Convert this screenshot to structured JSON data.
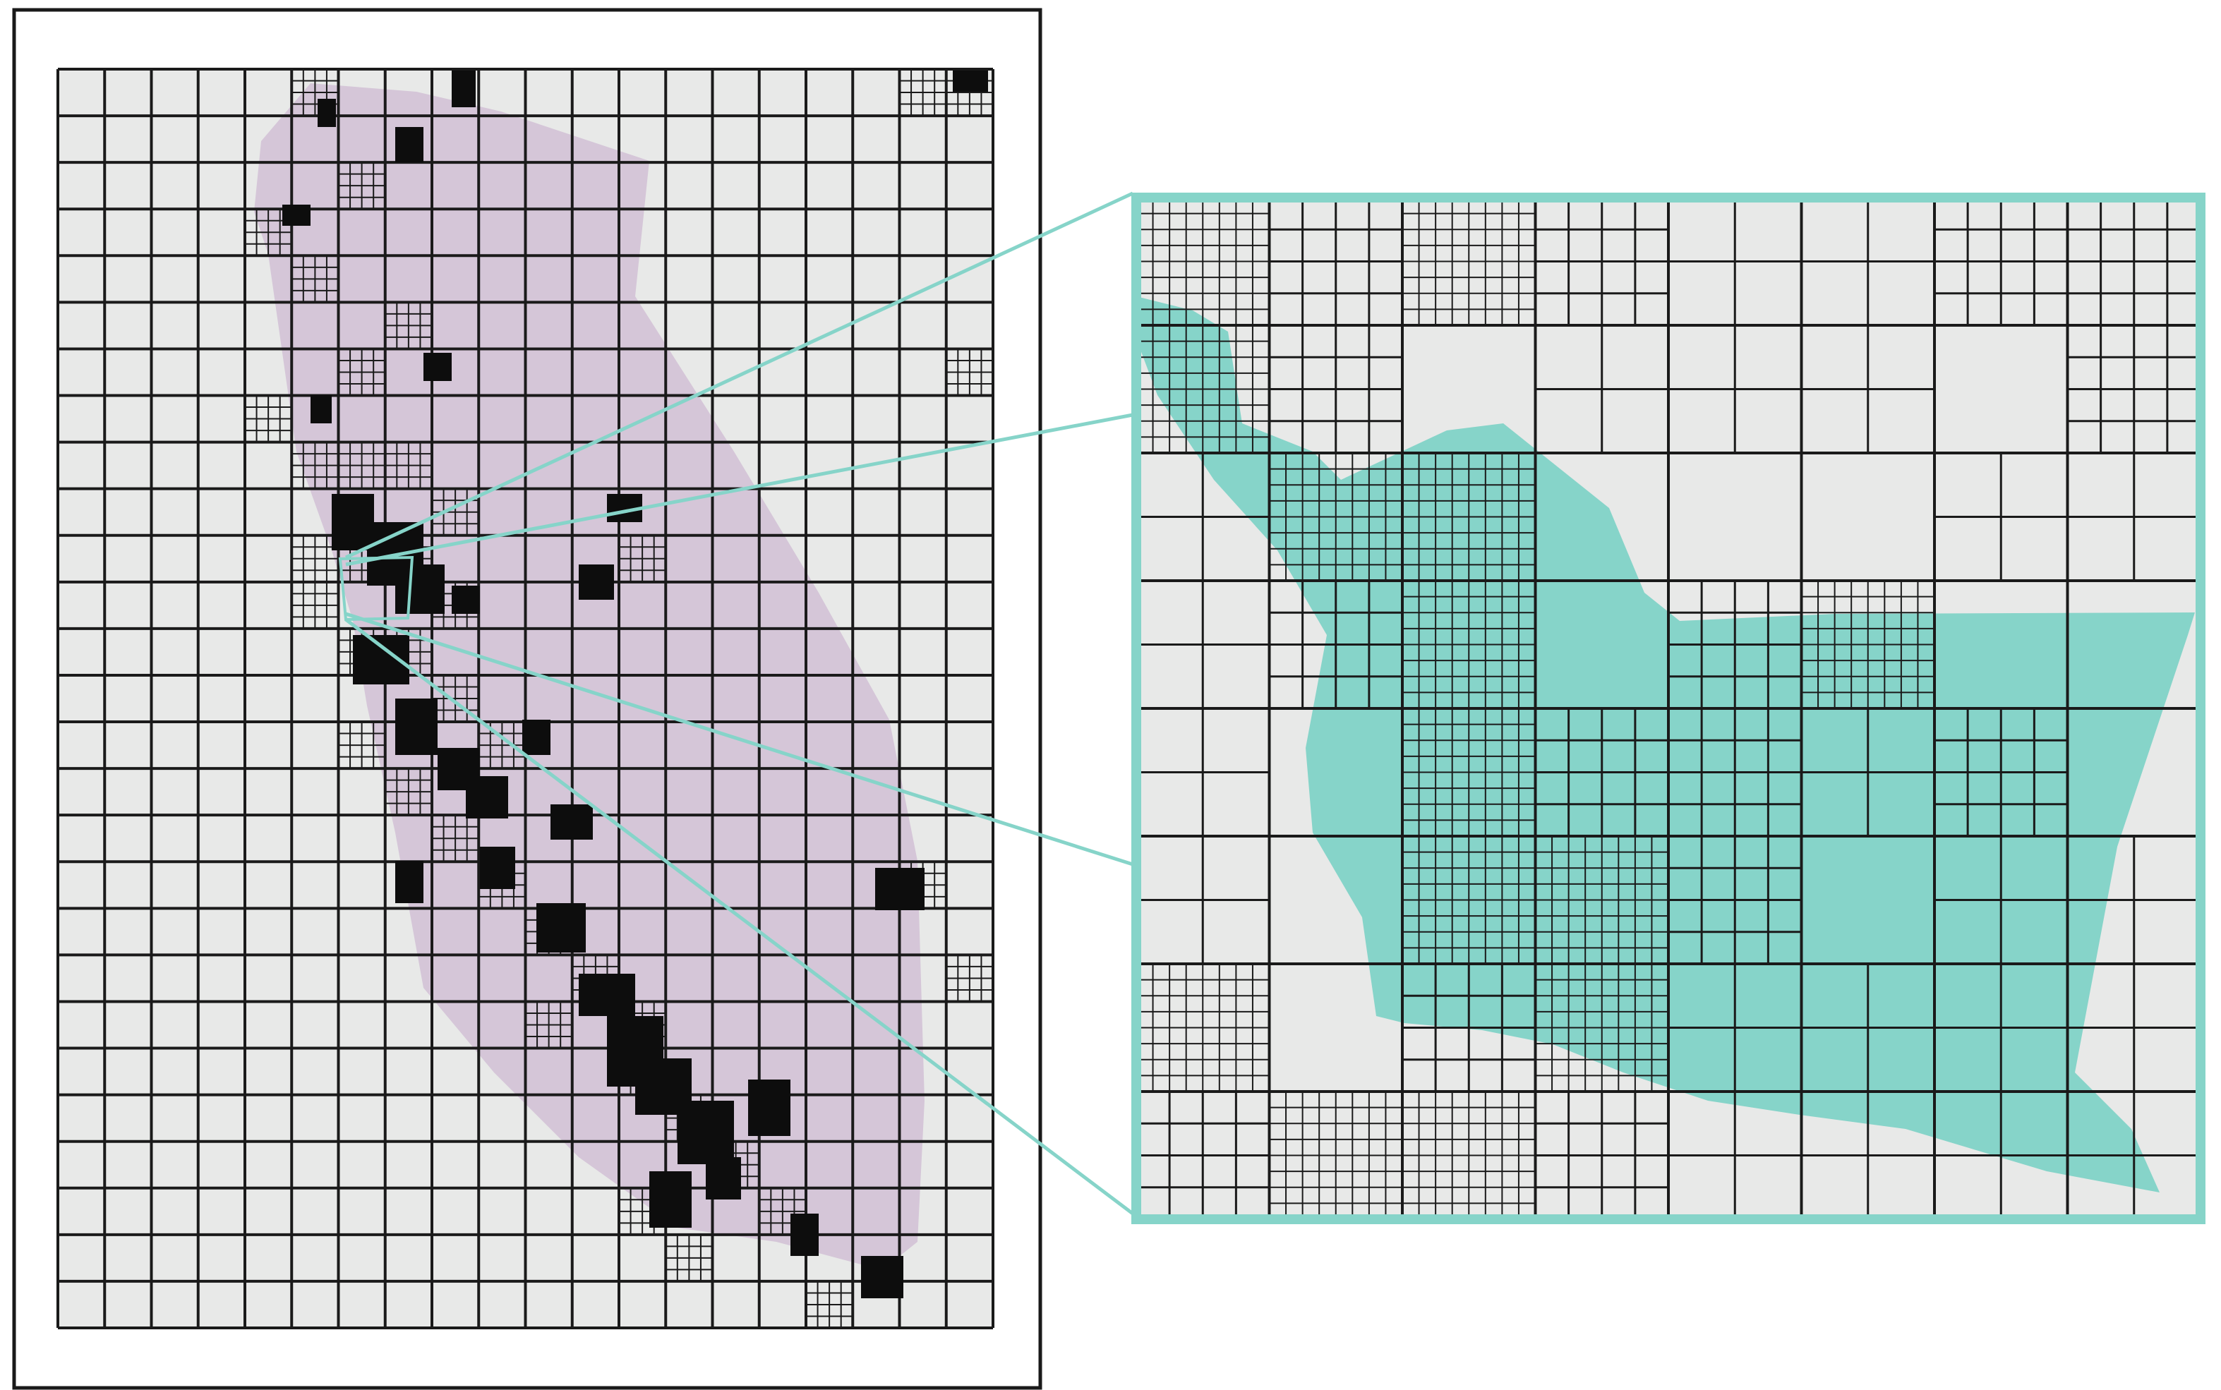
{
  "figure": {
    "left_panel": {
      "name": "statewide-quadtree-map"
    },
    "right_panel": {
      "name": "zoomed-quadtree-detail"
    }
  },
  "colors": {
    "frame": "#1a1a1a",
    "grid_line": "#1a1a1a",
    "cell_fill": "#e8e9e8",
    "region_fill": "#d5c6d8",
    "zoom_accent": "#86d4c9"
  }
}
